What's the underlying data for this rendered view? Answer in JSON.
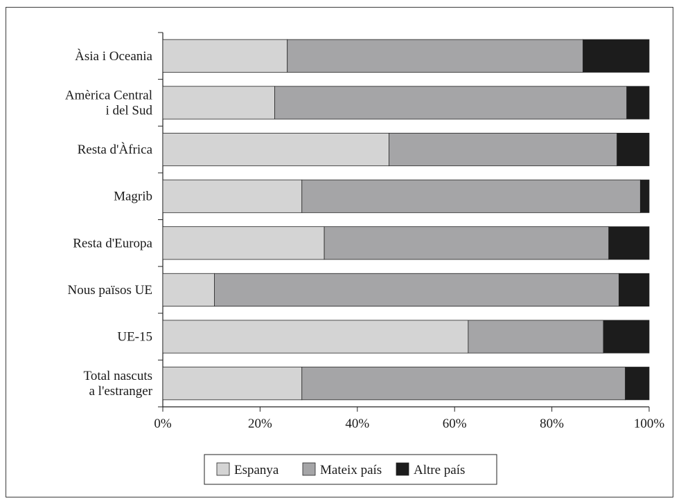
{
  "chart_data": {
    "type": "bar",
    "orientation": "horizontal",
    "stacked": "percent",
    "title": "",
    "xlabel": "",
    "ylabel": "",
    "categories": [
      [
        "Àsia i Oceania"
      ],
      [
        "Amèrica Central",
        "i del Sud"
      ],
      [
        "Resta d'Àfrica"
      ],
      [
        "Magrib"
      ],
      [
        "Resta d'Europa"
      ],
      [
        "Nous països UE"
      ],
      [
        "UE-15"
      ],
      [
        "Total nascuts",
        "a l'estranger"
      ]
    ],
    "series": [
      {
        "name": "Espanya",
        "color": "#d4d4d4",
        "values": [
          25.6,
          23.0,
          46.5,
          28.6,
          33.2,
          10.6,
          62.8,
          28.6
        ]
      },
      {
        "name": "Mateix país",
        "color": "#a5a5a7",
        "values": [
          60.8,
          72.4,
          46.9,
          69.6,
          58.5,
          83.2,
          27.8,
          66.5
        ]
      },
      {
        "name": "Altre país",
        "color": "#1c1c1c",
        "values": [
          13.6,
          4.6,
          6.6,
          1.8,
          8.3,
          6.2,
          9.4,
          4.9
        ]
      }
    ],
    "xticks": [
      "0%",
      "20%",
      "40%",
      "60%",
      "80%",
      "100%"
    ],
    "xlim": [
      0,
      100
    ],
    "grid": false,
    "legend_position": "bottom"
  }
}
